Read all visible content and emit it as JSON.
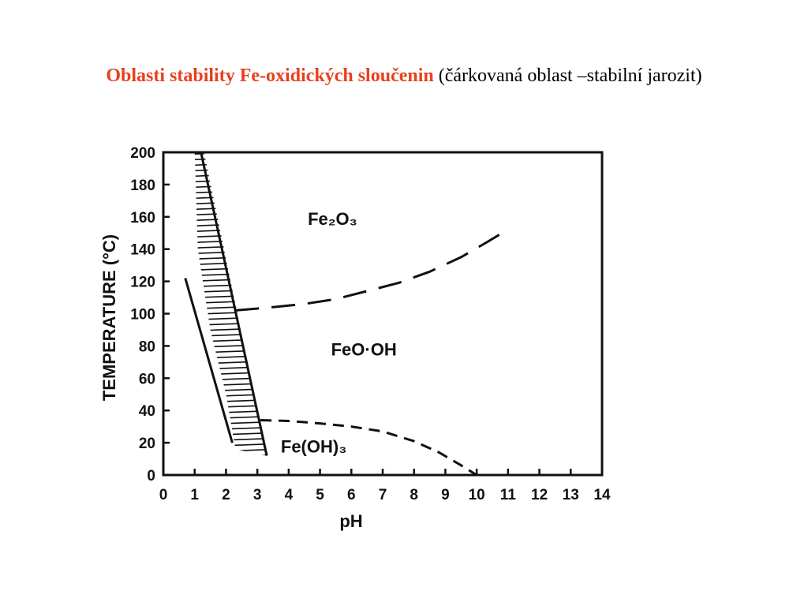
{
  "title": {
    "main": "Oblasti stability Fe-oxidických sloučenin",
    "note": "(čárkovaná oblast –stabilní jarozit)"
  },
  "colors": {
    "title_accent": "#e8401c",
    "ink": "#111111",
    "background": "#ffffff"
  },
  "chart_data": {
    "type": "line",
    "xlabel": "pH",
    "ylabel": "TEMPERATURE  (°C)",
    "xlim": [
      0,
      14
    ],
    "ylim": [
      0,
      200
    ],
    "xticks": [
      "0",
      "1",
      "2",
      "3",
      "4",
      "5",
      "6",
      "7",
      "8",
      "9",
      "10",
      "11",
      "12",
      "13",
      "14"
    ],
    "yticks": [
      "0",
      "20",
      "40",
      "60",
      "80",
      "100",
      "120",
      "140",
      "160",
      "180",
      "200"
    ],
    "grid": false,
    "series": [
      {
        "role": "jarosite-field-right-boundary",
        "style": "solid",
        "points": [
          [
            1.2,
            200
          ],
          [
            3.3,
            12
          ]
        ]
      },
      {
        "role": "jarosite-field-left-boundary",
        "style": "solid",
        "points": [
          [
            0.7,
            122
          ],
          [
            2.2,
            20
          ]
        ]
      },
      {
        "role": "hematite-goethite-boundary",
        "style": "long-dash",
        "points": [
          [
            2.3,
            102
          ],
          [
            3.5,
            104
          ],
          [
            4.5,
            106
          ],
          [
            5.5,
            109
          ],
          [
            6.5,
            114
          ],
          [
            7.5,
            119
          ],
          [
            8.5,
            126
          ],
          [
            9.5,
            135
          ],
          [
            10.3,
            144
          ],
          [
            10.9,
            151
          ]
        ]
      },
      {
        "role": "goethite-ferrihydrite-boundary",
        "style": "short-dash",
        "points": [
          [
            3.1,
            34
          ],
          [
            4.0,
            33.5
          ],
          [
            5.0,
            32
          ],
          [
            6.0,
            30
          ],
          [
            7.0,
            27
          ],
          [
            8.0,
            21
          ],
          [
            8.8,
            14
          ],
          [
            9.5,
            6
          ],
          [
            10.0,
            0
          ]
        ]
      }
    ],
    "hatched_region": {
      "label": "jarozit",
      "polygon": [
        [
          1.0,
          200
        ],
        [
          1.3,
          200
        ],
        [
          3.3,
          12
        ],
        [
          2.3,
          16
        ],
        [
          2.0,
          50
        ],
        [
          1.5,
          90
        ],
        [
          1.1,
          140
        ]
      ]
    },
    "regions": [
      {
        "label": "Fe₂O₃",
        "at": [
          5.4,
          155
        ]
      },
      {
        "label": "FeO·OH",
        "at": [
          6.4,
          74
        ]
      },
      {
        "label": "Fe(OH)₃",
        "at": [
          4.8,
          14
        ]
      }
    ]
  }
}
